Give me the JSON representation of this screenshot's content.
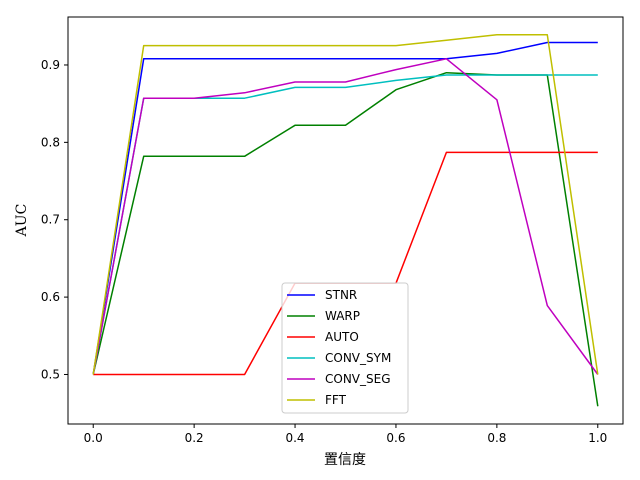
{
  "chart_data": {
    "type": "line",
    "title": "",
    "xlabel": "置信度",
    "ylabel": "AUC",
    "xlim": [
      -0.05,
      1.05
    ],
    "ylim": [
      0.436,
      0.962
    ],
    "xticks": [
      "0.0",
      "0.2",
      "0.4",
      "0.6",
      "0.8",
      "1.0"
    ],
    "yticks": [
      "0.5",
      "0.6",
      "0.7",
      "0.8",
      "0.9"
    ],
    "grid": false,
    "legend_position": "lower-center",
    "x": [
      0.0,
      0.1,
      0.2,
      0.3,
      0.4,
      0.5,
      0.6,
      0.7,
      0.8,
      0.9,
      1.0
    ],
    "series": [
      {
        "name": "STNR",
        "color": "#0000ff",
        "values": [
          0.5,
          0.908,
          0.908,
          0.908,
          0.908,
          0.908,
          0.908,
          0.908,
          0.915,
          0.929,
          0.929
        ]
      },
      {
        "name": "WARP",
        "color": "#008000",
        "values": [
          0.5,
          0.782,
          0.782,
          0.782,
          0.822,
          0.822,
          0.868,
          0.89,
          0.887,
          0.887,
          0.459
        ]
      },
      {
        "name": "AUTO",
        "color": "#ff0000",
        "values": [
          0.5,
          0.5,
          0.5,
          0.5,
          0.618,
          0.618,
          0.618,
          0.787,
          0.787,
          0.787,
          0.787
        ]
      },
      {
        "name": "CONV_SYM",
        "color": "#00bfbf",
        "values": [
          0.5,
          0.857,
          0.857,
          0.857,
          0.871,
          0.871,
          0.88,
          0.887,
          0.887,
          0.887,
          0.887
        ]
      },
      {
        "name": "CONV_SEG",
        "color": "#bf00bf",
        "values": [
          0.5,
          0.857,
          0.857,
          0.864,
          0.878,
          0.878,
          0.894,
          0.908,
          0.855,
          0.589,
          0.5
        ]
      },
      {
        "name": "FFT",
        "color": "#bfbf00",
        "values": [
          0.5,
          0.925,
          0.925,
          0.925,
          0.925,
          0.925,
          0.925,
          0.932,
          0.939,
          0.939,
          0.5
        ]
      }
    ]
  }
}
